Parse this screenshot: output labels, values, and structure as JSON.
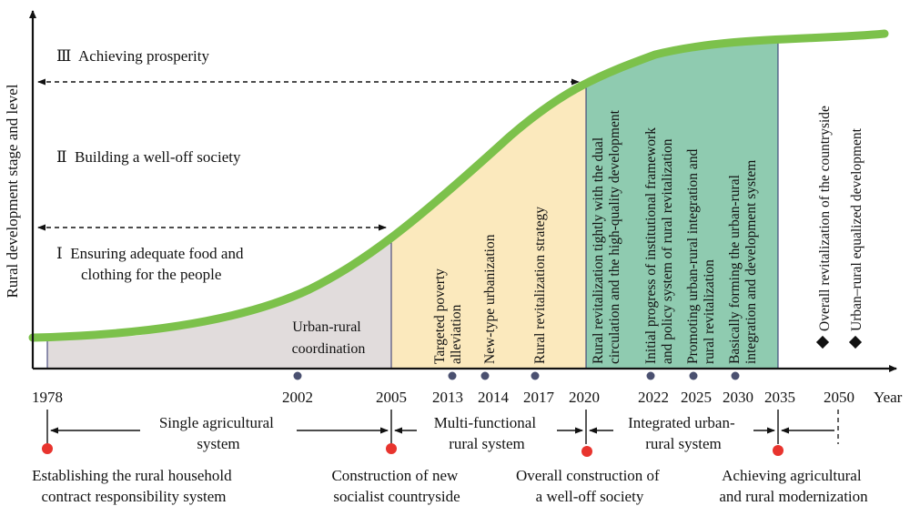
{
  "axes": {
    "y_label": "Rural development stage and level",
    "x_label": "Year"
  },
  "stages": [
    {
      "lines": [
        "Ⅲ  Achieving prosperity"
      ]
    },
    {
      "lines": [
        "Ⅱ  Building a well-off society"
      ]
    },
    {
      "lines": [
        "Ⅰ  Ensuring adequate food and",
        "clothing for the people"
      ]
    }
  ],
  "phases": [
    {
      "lines": [
        "Urban-rural",
        "coordination"
      ],
      "color": "#e1dcdc"
    },
    {
      "lines": [],
      "color": "#fbe9bd"
    },
    {
      "lines": [],
      "color": "#8fcbb0"
    }
  ],
  "rotated_labels": [
    {
      "lines": [
        "Targeted poverty",
        "alleviation"
      ]
    },
    {
      "lines": [
        "New-type urbanization"
      ]
    },
    {
      "lines": [
        "Rural revitalization strategy"
      ]
    },
    {
      "lines": [
        "Rural revitalization tightly with the dual",
        "circulation and the high-quality development"
      ]
    },
    {
      "lines": [
        "Initial progress of institutional framework",
        "and policy system of rural revitalization"
      ]
    },
    {
      "lines": [
        "Promoting urban-rural integration and",
        "rural revitalization"
      ]
    },
    {
      "lines": [
        "Basically forming the urban-rural",
        "integration and development system"
      ]
    },
    {
      "lines": [
        "Overall revitalization of the countryside"
      ]
    },
    {
      "lines": [
        "Urban–rural equalized development"
      ]
    }
  ],
  "years": [
    "1978",
    "2002",
    "2005",
    "2013",
    "2014",
    "2017",
    "2020",
    "2022",
    "2025",
    "2030",
    "2035",
    "2050"
  ],
  "systems": [
    {
      "lines": [
        "Single agricultural",
        "system"
      ]
    },
    {
      "lines": [
        "Multi-functional",
        "rural system"
      ]
    },
    {
      "lines": [
        "Integrated urban-",
        "rural system"
      ]
    }
  ],
  "milestones": [
    {
      "lines": [
        "Establishing the rural household",
        "contract responsibility system"
      ]
    },
    {
      "lines": [
        "Construction of new",
        "socialist countryside"
      ]
    },
    {
      "lines": [
        "Overall construction of",
        "a well-off society"
      ]
    },
    {
      "lines": [
        "Achieving agricultural",
        "and rural modernization"
      ]
    }
  ],
  "colors": {
    "curve": "#7cc14b",
    "milestone_dot": "#e8342e",
    "year_dot": "#4a5070",
    "axis": "#111111"
  }
}
